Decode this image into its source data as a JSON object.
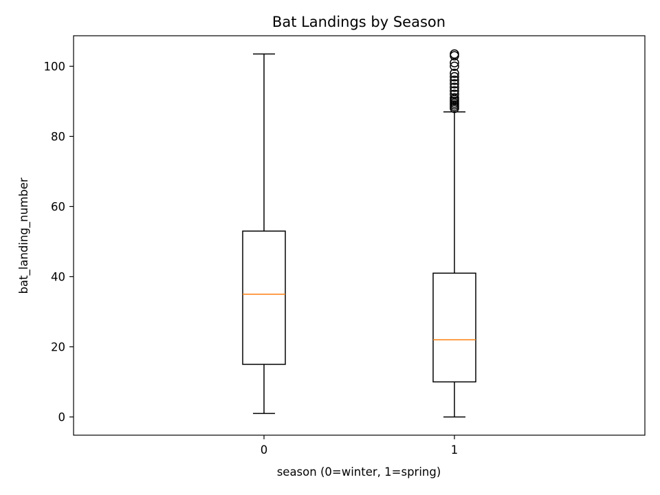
{
  "chart_data": {
    "type": "boxplot",
    "title": "Bat Landings by Season",
    "xlabel": "season (0=winter, 1=spring)",
    "ylabel": "bat_landing_number",
    "categories": [
      "0",
      "1"
    ],
    "ylim": [
      -5.2,
      108.7
    ],
    "yticks": [
      0,
      20,
      40,
      60,
      80,
      100
    ],
    "grid": false,
    "boxes": [
      {
        "category": "0",
        "whisker_low": 1,
        "q1": 15,
        "median": 35,
        "q3": 53,
        "whisker_high": 103.5,
        "outliers": []
      },
      {
        "category": "1",
        "whisker_low": 0,
        "q1": 10,
        "median": 22,
        "q3": 41,
        "whisker_high": 87,
        "outliers": [
          88,
          88.5,
          89,
          89.5,
          90,
          90.5,
          91,
          92,
          93,
          94,
          95,
          96,
          97,
          98,
          100,
          101,
          103,
          103.5
        ]
      }
    ],
    "colors": {
      "box": "#000000",
      "median": "#ff7f0e",
      "axes": "#000000"
    }
  }
}
